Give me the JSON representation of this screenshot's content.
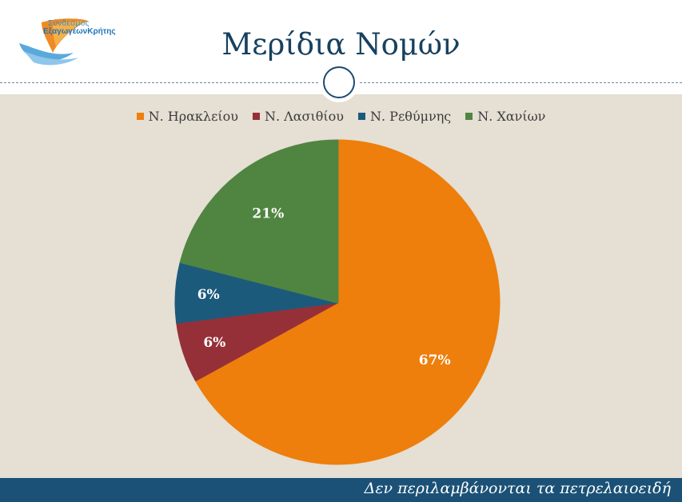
{
  "header": {
    "logo_line1": "Σύνδεσμος",
    "logo_line2": "ΕξαγωγέωνΚρήτης",
    "title": "Μερίδια Νομών"
  },
  "footer": {
    "note": "Δεν περιλαμβάνονται τα πετρελαιοειδή"
  },
  "colors": {
    "orange": "#ee7f0c",
    "red": "#963038",
    "blue": "#1c5a7c",
    "green": "#508541",
    "panel": "#e5dfd4",
    "footer": "#1b5176"
  },
  "chart_data": {
    "type": "pie",
    "title": "Μερίδια Νομών",
    "legend_position": "top",
    "slices": [
      {
        "label": "Ν. Ηρακλείου",
        "value": 67,
        "display": "67%",
        "color": "#ee7f0c"
      },
      {
        "label": "Ν. Λασιθίου",
        "value": 6,
        "display": "6%",
        "color": "#963038"
      },
      {
        "label": "Ν. Ρεθύμνης",
        "value": 6,
        "display": "6%",
        "color": "#1c5a7c"
      },
      {
        "label": "Ν. Χανίων",
        "value": 21,
        "display": "21%",
        "color": "#508541"
      }
    ]
  }
}
